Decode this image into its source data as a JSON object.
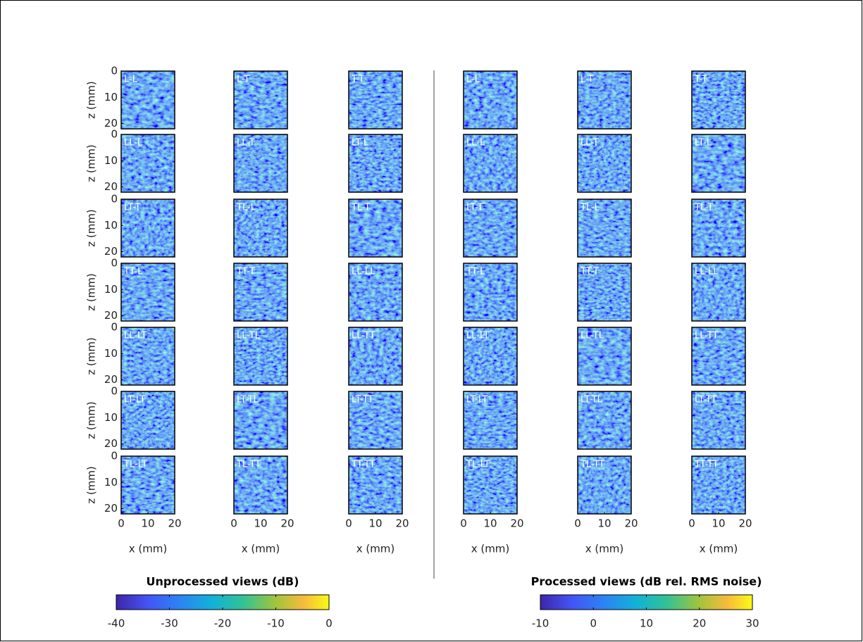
{
  "axes": {
    "x_label": "x (mm)",
    "y_label": "z (mm)",
    "xlim": [
      0,
      20
    ],
    "ylim": [
      0,
      22
    ],
    "xticks": [
      0,
      10,
      20
    ],
    "yticks": [
      0,
      10,
      20
    ]
  },
  "left": {
    "title": "Unprocessed views (dB)",
    "panels": [
      "L-L",
      "L-T",
      "T-T",
      "LL-L",
      "LL-T",
      "LT-L",
      "LT-T",
      "TL-L",
      "TL-T",
      "TT-L",
      "TT-T",
      "LL-LL",
      "LL-LT",
      "LL-TL",
      "LL-TT",
      "LT-LT",
      "LT-TL",
      "LT-TT",
      "TL-LT",
      "TL-TT",
      "TT-TT"
    ],
    "colorbar": {
      "lim": [
        -40,
        0
      ],
      "ticks": [
        -40,
        -30,
        -20,
        -10,
        0
      ]
    }
  },
  "right": {
    "title": "Processed views (dB rel. RMS noise)",
    "panels": [
      "L-L",
      "L-T",
      "T-T",
      "LL-L",
      "LL-T",
      "LT-L",
      "LT-T",
      "TL-L",
      "TL-T",
      "TT-L",
      "TT-T",
      "LL-LL",
      "LL-LT",
      "LL-TL",
      "LL-TT",
      "LT-LT",
      "LT-TL",
      "LT-TT",
      "TL-LT",
      "TL-TT",
      "TT-TT"
    ],
    "colorbar": {
      "lim": [
        -10,
        30
      ],
      "ticks": [
        -10,
        0,
        10,
        20,
        30
      ]
    }
  }
}
